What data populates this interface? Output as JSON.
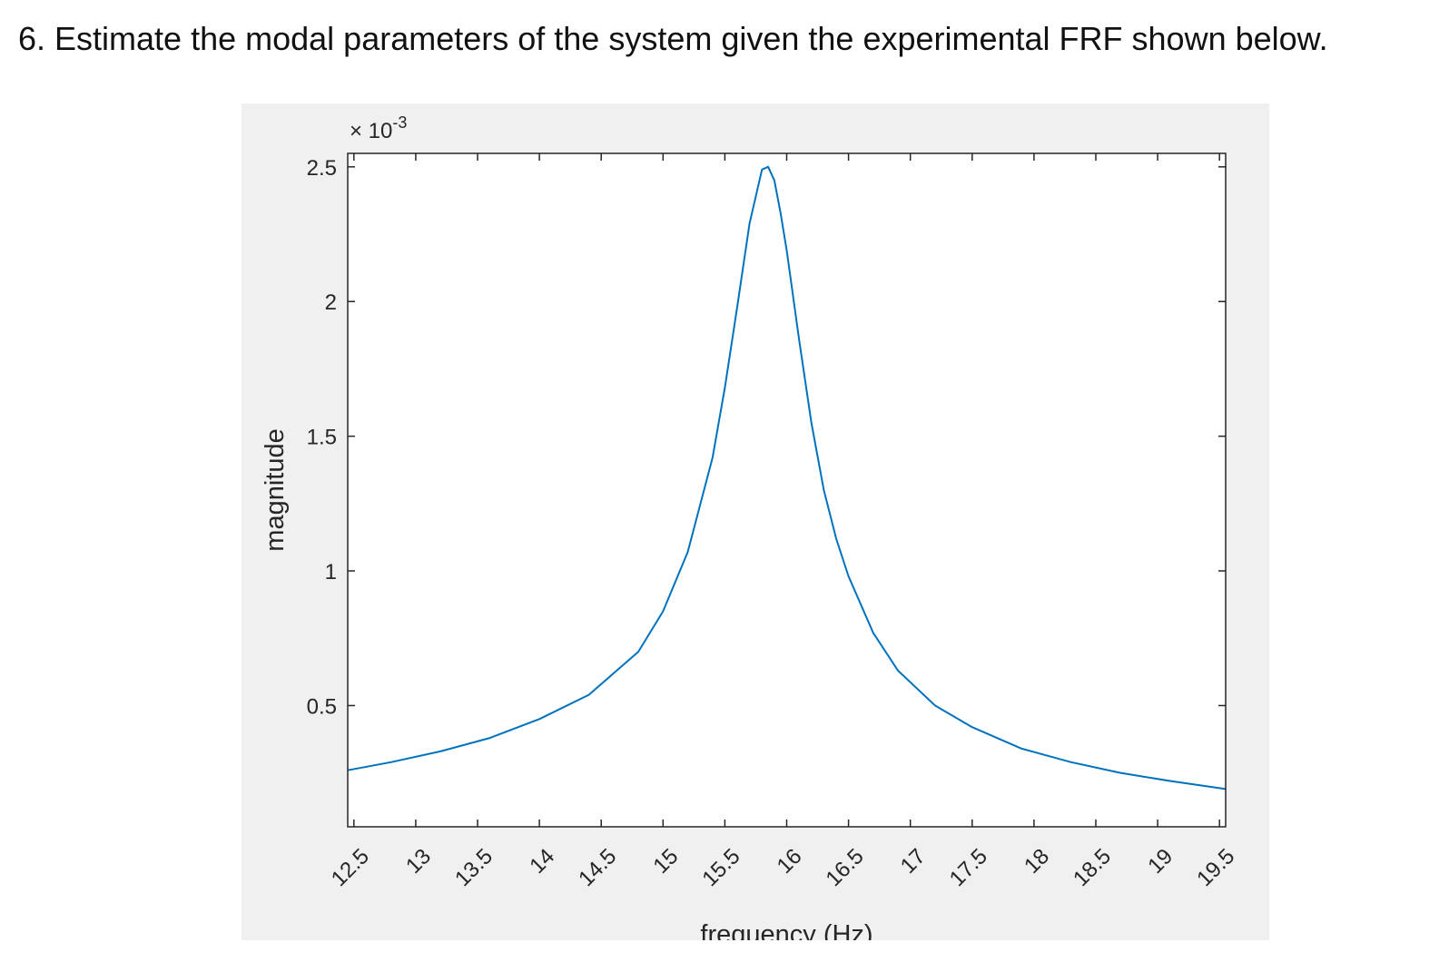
{
  "question": {
    "text": "6. Estimate the modal parameters of the system given the experimental FRF shown below."
  },
  "chart_data": {
    "type": "line",
    "xlabel": "frequency (Hz)",
    "ylabel": "magnitude",
    "exponent_label": "× 10",
    "exponent_power": "-3",
    "xlim": [
      12.45,
      19.55
    ],
    "ylim": [
      0.05,
      2.55
    ],
    "xticks": [
      "12.5",
      "13",
      "13.5",
      "14",
      "14.5",
      "15",
      "15.5",
      "16",
      "16.5",
      "17",
      "17.5",
      "18",
      "18.5",
      "19",
      "19.5"
    ],
    "yticks": [
      "0.5",
      "1",
      "1.5",
      "2",
      "2.5"
    ],
    "y_scale_factor": 0.001,
    "line_color": "#0072bd",
    "grid": false,
    "series": [
      {
        "x": [
          12.45,
          12.8,
          13.2,
          13.6,
          14.0,
          14.4,
          14.8,
          15.0,
          15.2,
          15.4,
          15.5,
          15.6,
          15.7,
          15.8,
          15.85,
          15.9,
          15.95,
          16.0,
          16.1,
          16.2,
          16.3,
          16.4,
          16.5,
          16.7,
          16.9,
          17.2,
          17.5,
          17.9,
          18.3,
          18.7,
          19.1,
          19.55
        ],
        "y": [
          0.26,
          0.29,
          0.33,
          0.38,
          0.45,
          0.54,
          0.7,
          0.85,
          1.07,
          1.42,
          1.68,
          1.98,
          2.29,
          2.49,
          2.5,
          2.45,
          2.33,
          2.19,
          1.86,
          1.55,
          1.3,
          1.12,
          0.98,
          0.77,
          0.63,
          0.5,
          0.42,
          0.34,
          0.29,
          0.25,
          0.22,
          0.19
        ]
      }
    ]
  }
}
